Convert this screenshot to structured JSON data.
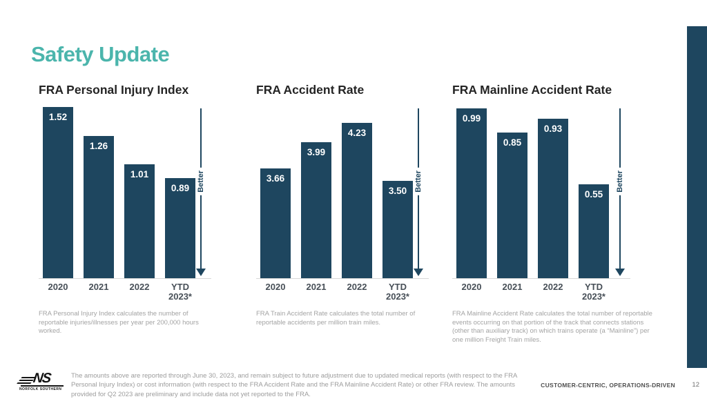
{
  "slide": {
    "title": "Safety Update",
    "page_number": "12",
    "footer_tagline": "CUSTOMER-CENTRIC, OPERATIONS-DRIVEN",
    "logo": {
      "monogram": "NS",
      "caption": "NORFOLK SOUTHERN"
    },
    "disclaimer": "The amounts above are reported through June 30, 2023, and remain subject to future adjustment due to updated medical reports (with respect to the FRA Personal Injury Index) or cost information (with respect to the FRA Accident Rate and the FRA Mainline Accident Rate) or other FRA review. The amounts provided for Q2 2023 are preliminary and include data not yet reported to the FRA."
  },
  "colors": {
    "accent_teal": "#4bb5ac",
    "bar_navy": "#1e465f",
    "footnote_gray": "#a3a3a3",
    "axis_label": "#474f57",
    "chart_title": "#242424",
    "footer_text": "#4f4f4f"
  },
  "chart_data": [
    {
      "type": "bar",
      "title": "FRA Personal Injury Index",
      "categories": [
        "2020",
        "2021",
        "2022",
        "YTD\n2023*"
      ],
      "values": [
        1.52,
        1.26,
        1.01,
        0.89
      ],
      "labels": [
        "1.52",
        "1.26",
        "1.01",
        "0.89"
      ],
      "ylim": [
        0,
        1.52
      ],
      "grid": false,
      "value_labels_position": "inside-top",
      "better_label": "Better",
      "better_direction": "down",
      "footnote": "FRA Personal Injury Index calculates the number of reportable injuries/illnesses per year per 200,000 hours worked."
    },
    {
      "type": "bar",
      "title": "FRA Accident Rate",
      "categories": [
        "2020",
        "2021",
        "2022",
        "YTD\n2023*"
      ],
      "values": [
        3.66,
        3.99,
        4.23,
        3.5
      ],
      "labels": [
        "3.66",
        "3.99",
        "4.23",
        "3.50"
      ],
      "ylim": [
        2.28,
        4.43
      ],
      "grid": false,
      "value_labels_position": "inside-top",
      "better_label": "Better",
      "better_direction": "down",
      "footnote": "FRA Train Accident Rate calculates the total number of reportable accidents per million train miles."
    },
    {
      "type": "bar",
      "title": "FRA Mainline Accident Rate",
      "categories": [
        "2020",
        "2021",
        "2022",
        "YTD\n2023*"
      ],
      "values": [
        0.99,
        0.85,
        0.93,
        0.55
      ],
      "labels": [
        "0.99",
        "0.85",
        "0.93",
        "0.55"
      ],
      "ylim": [
        0,
        1.0
      ],
      "grid": false,
      "value_labels_position": "inside-top",
      "better_label": "Better",
      "better_direction": "down",
      "footnote": "FRA Mainline Accident Rate calculates the total number of reportable events occurring on that portion of the track that connects stations (other than auxiliary track) on which trains operate (a “Mainline”) per one million Freight Train miles."
    }
  ]
}
